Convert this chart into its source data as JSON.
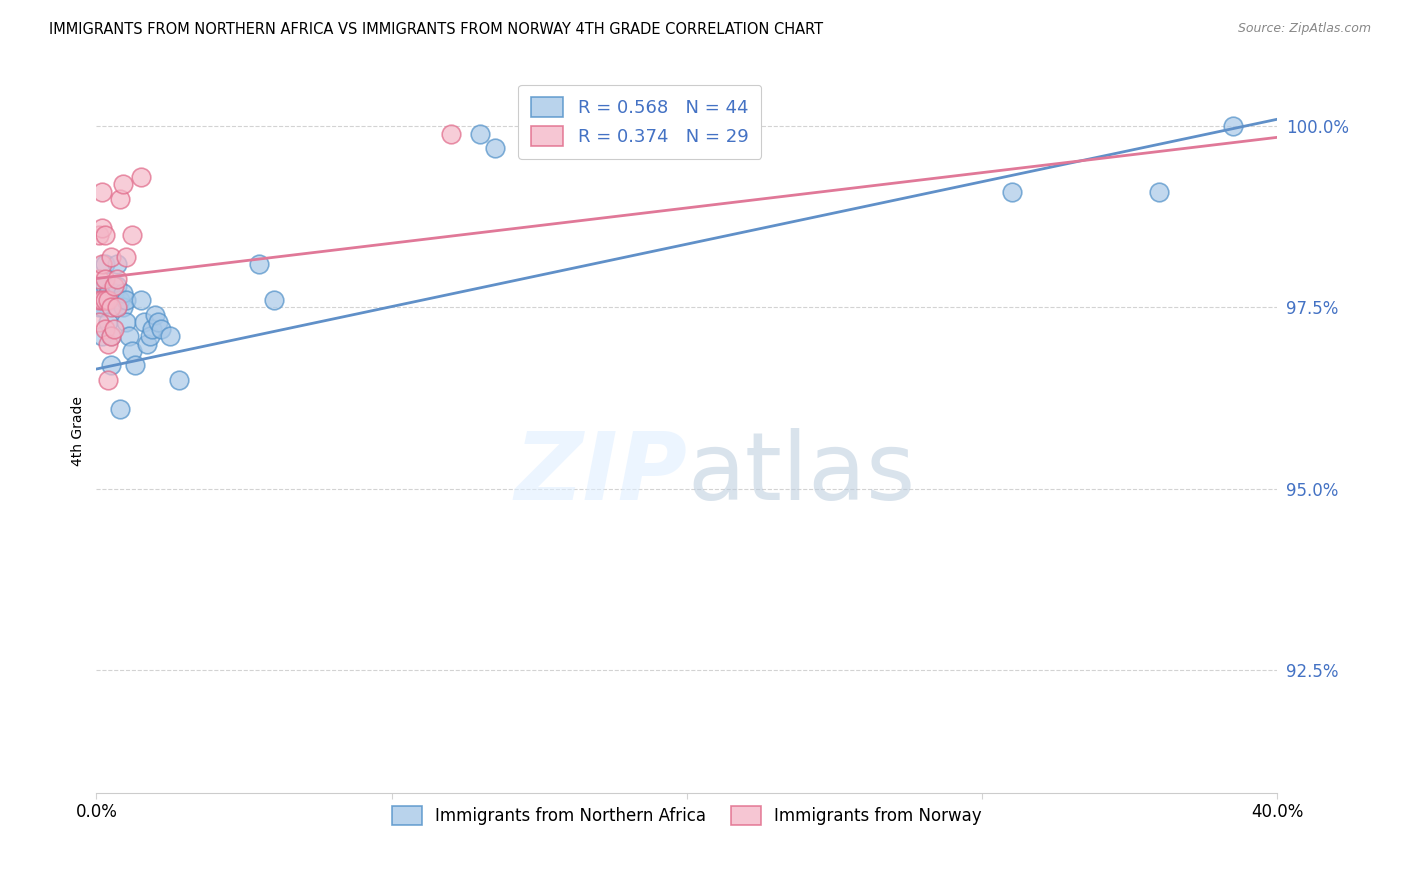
{
  "title": "IMMIGRANTS FROM NORTHERN AFRICA VS IMMIGRANTS FROM NORWAY 4TH GRADE CORRELATION CHART",
  "source": "Source: ZipAtlas.com",
  "ylabel": "4th Grade",
  "xlim": [
    0.0,
    0.4
  ],
  "ylim": [
    0.908,
    1.008
  ],
  "yticks": [
    0.925,
    0.95,
    0.975,
    1.0
  ],
  "ytick_labels": [
    "92.5%",
    "95.0%",
    "97.5%",
    "100.0%"
  ],
  "xticks": [
    0.0,
    0.1,
    0.2,
    0.3,
    0.4
  ],
  "xtick_labels": [
    "0.0%",
    "",
    "",
    "",
    "40.0%"
  ],
  "blue_R": 0.568,
  "blue_N": 44,
  "pink_R": 0.374,
  "pink_N": 29,
  "blue_color": "#a8c8e8",
  "pink_color": "#f4b8c8",
  "blue_edge_color": "#5090c8",
  "pink_edge_color": "#e06888",
  "blue_line_color": "#6090c8",
  "pink_line_color": "#e07898",
  "legend_label_blue": "Immigrants from Northern Africa",
  "legend_label_pink": "Immigrants from Norway",
  "blue_scatter_x": [
    0.001,
    0.001,
    0.002,
    0.002,
    0.003,
    0.003,
    0.003,
    0.004,
    0.004,
    0.004,
    0.005,
    0.005,
    0.006,
    0.006,
    0.007,
    0.007,
    0.007,
    0.008,
    0.008,
    0.009,
    0.009,
    0.01,
    0.01,
    0.011,
    0.012,
    0.013,
    0.015,
    0.016,
    0.017,
    0.018,
    0.019,
    0.02,
    0.021,
    0.022,
    0.025,
    0.028,
    0.055,
    0.06,
    0.13,
    0.135,
    0.22,
    0.31,
    0.36,
    0.385
  ],
  "blue_scatter_y": [
    0.978,
    0.975,
    0.975,
    0.971,
    0.976,
    0.978,
    0.981,
    0.976,
    0.977,
    0.973,
    0.971,
    0.967,
    0.976,
    0.977,
    0.978,
    0.981,
    0.975,
    0.976,
    0.961,
    0.975,
    0.977,
    0.973,
    0.976,
    0.971,
    0.969,
    0.967,
    0.976,
    0.973,
    0.97,
    0.971,
    0.972,
    0.974,
    0.973,
    0.972,
    0.971,
    0.965,
    0.981,
    0.976,
    0.999,
    0.997,
    0.997,
    0.991,
    0.991,
    1.0
  ],
  "pink_scatter_x": [
    0.001,
    0.001,
    0.001,
    0.001,
    0.002,
    0.002,
    0.002,
    0.002,
    0.003,
    0.003,
    0.003,
    0.003,
    0.004,
    0.004,
    0.004,
    0.005,
    0.005,
    0.005,
    0.006,
    0.006,
    0.007,
    0.007,
    0.008,
    0.009,
    0.01,
    0.012,
    0.015,
    0.12,
    0.19
  ],
  "pink_scatter_y": [
    0.973,
    0.976,
    0.979,
    0.985,
    0.976,
    0.981,
    0.986,
    0.991,
    0.972,
    0.976,
    0.979,
    0.985,
    0.965,
    0.97,
    0.976,
    0.971,
    0.975,
    0.982,
    0.972,
    0.978,
    0.979,
    0.975,
    0.99,
    0.992,
    0.982,
    0.985,
    0.993,
    0.999,
    0.998
  ],
  "blue_line_x0": 0.0,
  "blue_line_x1": 0.4,
  "blue_line_y0": 0.9665,
  "blue_line_y1": 1.001,
  "pink_line_x0": 0.0,
  "pink_line_x1": 0.4,
  "pink_line_y0": 0.979,
  "pink_line_y1": 0.9985
}
